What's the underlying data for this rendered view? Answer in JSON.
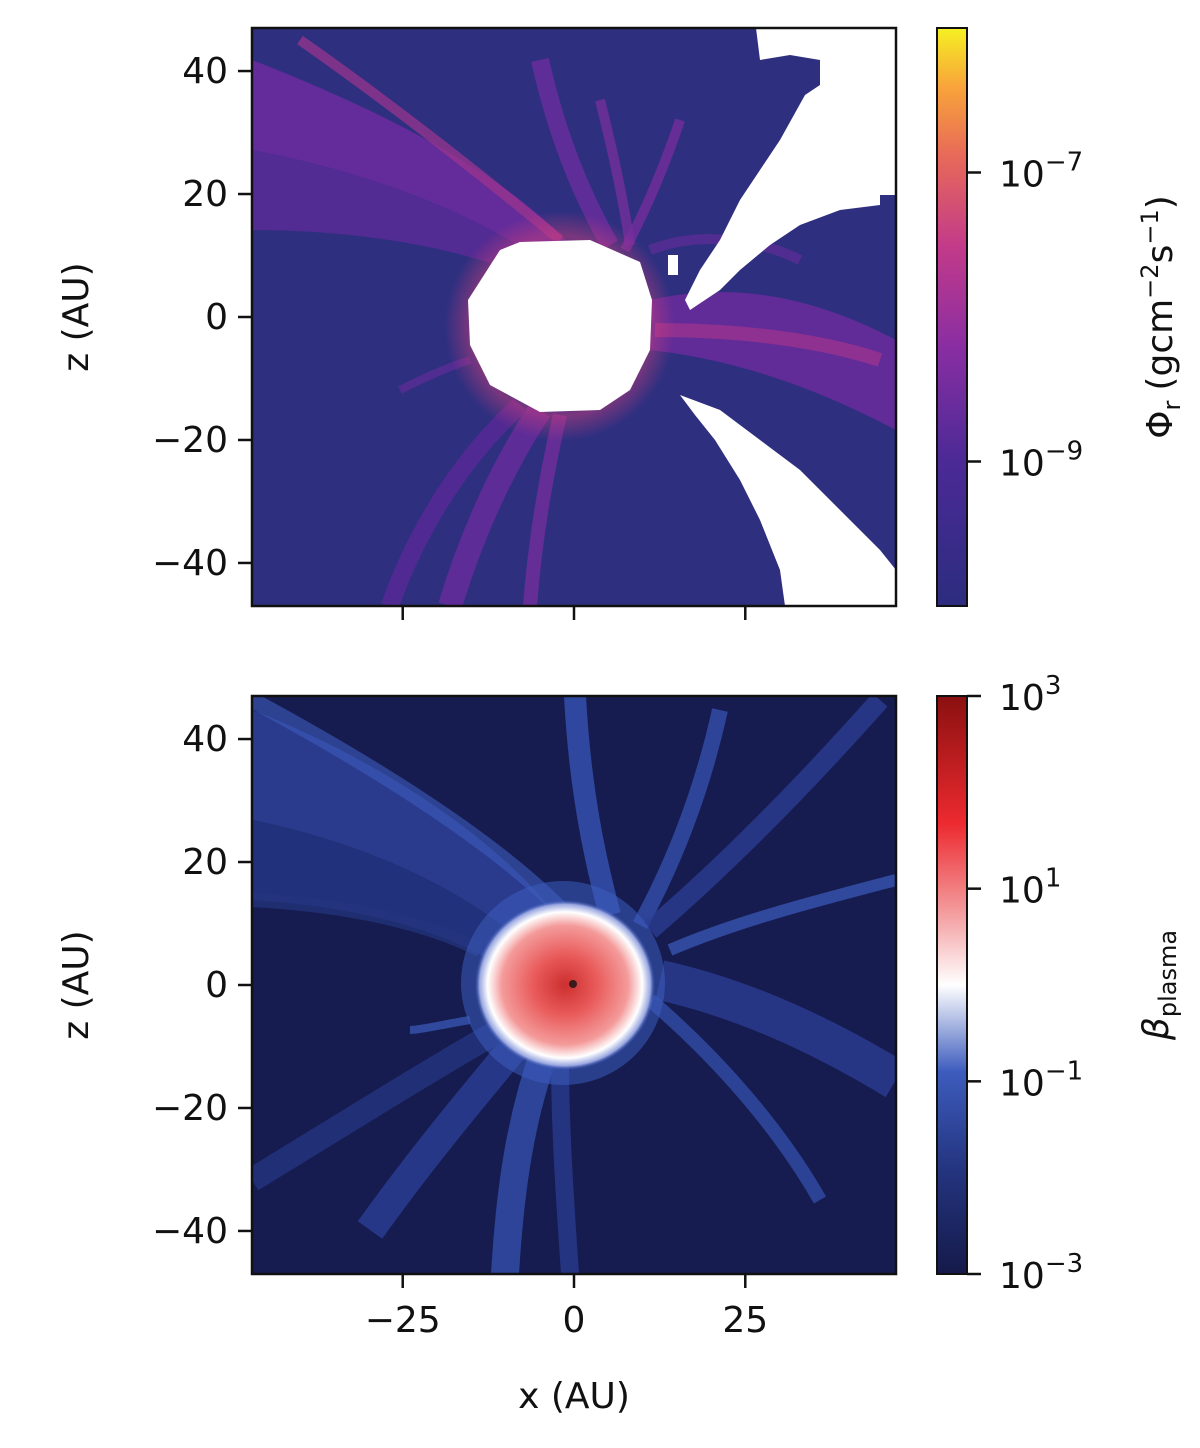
{
  "chart_data": [
    {
      "type": "heatmap",
      "panel": "top",
      "xlabel": "",
      "ylabel": "z (AU)",
      "xlim": [
        -47,
        47
      ],
      "ylim": [
        -47,
        47
      ],
      "xticks": [
        -25,
        0,
        25
      ],
      "yticks": [
        -40,
        -20,
        0,
        20,
        40
      ],
      "ytick_labels": [
        "−40",
        "−20",
        "0",
        "20",
        "40"
      ],
      "colorbar": {
        "label_main": "Φ",
        "label_sub": "r",
        "label_units": "(gcm",
        "label_exp1": "−2",
        "label_mid": "s",
        "label_exp2": "−1",
        "label_close": ")",
        "scale": "log",
        "range": [
          1e-10,
          1e-06
        ],
        "colormap": "plasma",
        "ticks": [
          {
            "value": 1e-07,
            "base": "10",
            "exp": "−7"
          },
          {
            "value": 1e-09,
            "base": "10",
            "exp": "−9"
          }
        ]
      },
      "features": {
        "central_blank_radius_au": 14,
        "blank_regions": [
          "center",
          "upper-right wedge",
          "lower-right wedge"
        ],
        "background_log_value": -9.8,
        "stream_peak_log_value": -8.3
      }
    },
    {
      "type": "heatmap",
      "panel": "bottom",
      "xlabel": "x (AU)",
      "ylabel": "z (AU)",
      "xlim": [
        -47,
        47
      ],
      "ylim": [
        -47,
        47
      ],
      "xticks": [
        -25,
        0,
        25
      ],
      "xtick_labels": [
        "−25",
        "0",
        "25"
      ],
      "yticks": [
        -40,
        -20,
        0,
        20,
        40
      ],
      "ytick_labels": [
        "−40",
        "−20",
        "0",
        "20",
        "40"
      ],
      "colorbar": {
        "label_main": "β",
        "label_sub": "plasma",
        "scale": "log",
        "range": [
          0.001,
          1000.0
        ],
        "colormap": "seismic",
        "ticks": [
          {
            "value": 1000.0,
            "base": "10",
            "exp": "3"
          },
          {
            "value": 10.0,
            "base": "10",
            "exp": "1"
          },
          {
            "value": 0.1,
            "base": "10",
            "exp": "−1"
          },
          {
            "value": 0.001,
            "base": "10",
            "exp": "−3"
          }
        ]
      },
      "features": {
        "core_radius_au": 13,
        "core_log_value_center": 2.6,
        "background_log_value": -2.8
      }
    }
  ]
}
